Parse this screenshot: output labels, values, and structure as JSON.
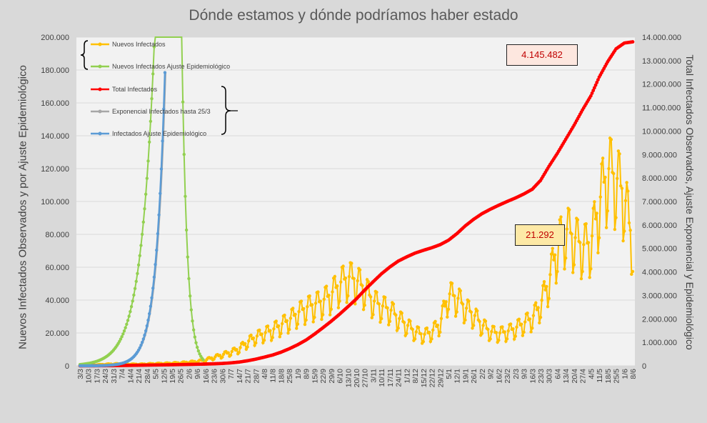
{
  "chart_data": {
    "type": "line",
    "title": "Dónde estamos y dónde podríamos haber estado",
    "ylabel_left": "Nuevos Infectados Observados y por Ajuste Epidemiológico",
    "ylabel_right": "Total Infectados Observados, Ajuste Exponencial y Epidemiológico",
    "y_left": {
      "range": [
        0,
        200000
      ],
      "ticks": [
        "0",
        "20.000",
        "40.000",
        "60.000",
        "80.000",
        "100.000",
        "120.000",
        "140.000",
        "160.000",
        "180.000",
        "200.000"
      ]
    },
    "y_right": {
      "range": [
        0,
        14000000
      ],
      "ticks": [
        "0",
        "1.000.000",
        "2.000.000",
        "3.000.000",
        "4.000.000",
        "5.000.000",
        "6.000.000",
        "7.000.000",
        "8.000.000",
        "9.000.000",
        "10.000.000",
        "11.000.000",
        "12.000.000",
        "13.000.000",
        "14.000.000"
      ]
    },
    "x_ticks": [
      "3/3",
      "10/3",
      "17/3",
      "24/3",
      "31/3",
      "7/4",
      "14/4",
      "21/4",
      "28/4",
      "5/5",
      "12/5",
      "19/5",
      "26/5",
      "2/6",
      "9/6",
      "16/6",
      "23/6",
      "30/6",
      "7/7",
      "14/7",
      "21/7",
      "28/7",
      "4/8",
      "11/8",
      "18/8",
      "25/8",
      "1/9",
      "8/9",
      "15/9",
      "22/9",
      "29/9",
      "6/10",
      "13/10",
      "20/10",
      "27/10",
      "3/11",
      "10/11",
      "17/11",
      "24/11",
      "1/12",
      "8/12",
      "15/12",
      "22/12",
      "29/12",
      "5/1",
      "12/1",
      "19/1",
      "26/1",
      "2/2",
      "9/2",
      "16/2",
      "23/2",
      "2/3",
      "9/3",
      "16/3",
      "23/3",
      "30/3",
      "6/4",
      "13/4",
      "20/4",
      "27/4",
      "4/5",
      "11/5",
      "18/5",
      "25/5",
      "1/6",
      "8/6"
    ],
    "legend": [
      {
        "label": "Nuevos Infectados",
        "color": "#ffc000"
      },
      {
        "label": "Nuevos Infectados Ajuste Epidemiológico",
        "color": "#92d050"
      },
      {
        "label": "Total Infectados",
        "color": "#ff0000"
      },
      {
        "label": "Exponencial Infectados hasta 25/3",
        "color": "#a6a6a6"
      },
      {
        "label": "Infectados Ajuste Epidemiológico",
        "color": "#5b9bd5"
      }
    ],
    "series_nuevos_weekly": [
      0,
      300,
      600,
      900,
      1100,
      1200,
      1000,
      900,
      1100,
      1300,
      1400,
      1600,
      1800,
      2200,
      2600,
      3500,
      5000,
      6500,
      8000,
      10000,
      14000,
      17000,
      19000,
      21000,
      24000,
      27000,
      31000,
      34000,
      36000,
      38000,
      42000,
      48000,
      52000,
      50000,
      45000,
      38000,
      35000,
      33000,
      28000,
      24000,
      20000,
      18000,
      20000,
      25000,
      42000,
      40000,
      34000,
      30000,
      24000,
      20000,
      19000,
      20000,
      22000,
      25000,
      28000,
      36000,
      50000,
      70000,
      80000,
      75000,
      70000,
      72000,
      95000,
      115000,
      110000,
      100000,
      70000
    ],
    "series_total_weekly": [
      0,
      1000,
      3000,
      6000,
      10000,
      15000,
      20000,
      26000,
      31000,
      36000,
      41000,
      47000,
      53000,
      60000,
      68000,
      76000,
      87000,
      101000,
      125000,
      160000,
      215000,
      285000,
      370000,
      460000,
      580000,
      730000,
      900000,
      1100000,
      1350000,
      1620000,
      1900000,
      2200000,
      2520000,
      2850000,
      3230000,
      3580000,
      3920000,
      4210000,
      4460000,
      4640000,
      4800000,
      4920000,
      5030000,
      5160000,
      5350000,
      5630000,
      5960000,
      6240000,
      6480000,
      6670000,
      6840000,
      7000000,
      7150000,
      7320000,
      7520000,
      7900000,
      8500000,
      9050000,
      9650000,
      10250000,
      10900000,
      11500000,
      12300000,
      12950000,
      13500000,
      13750000,
      13800000
    ],
    "series_epidemiologico_nuevos": {
      "note_points_x": [
        0,
        5,
        7,
        10,
        12,
        14,
        15
      ],
      "values": [
        0,
        1500,
        20000,
        200000,
        200000,
        8000,
        0
      ]
    },
    "callouts": {
      "total": "4.145.482",
      "nuevos": "21.292"
    }
  }
}
